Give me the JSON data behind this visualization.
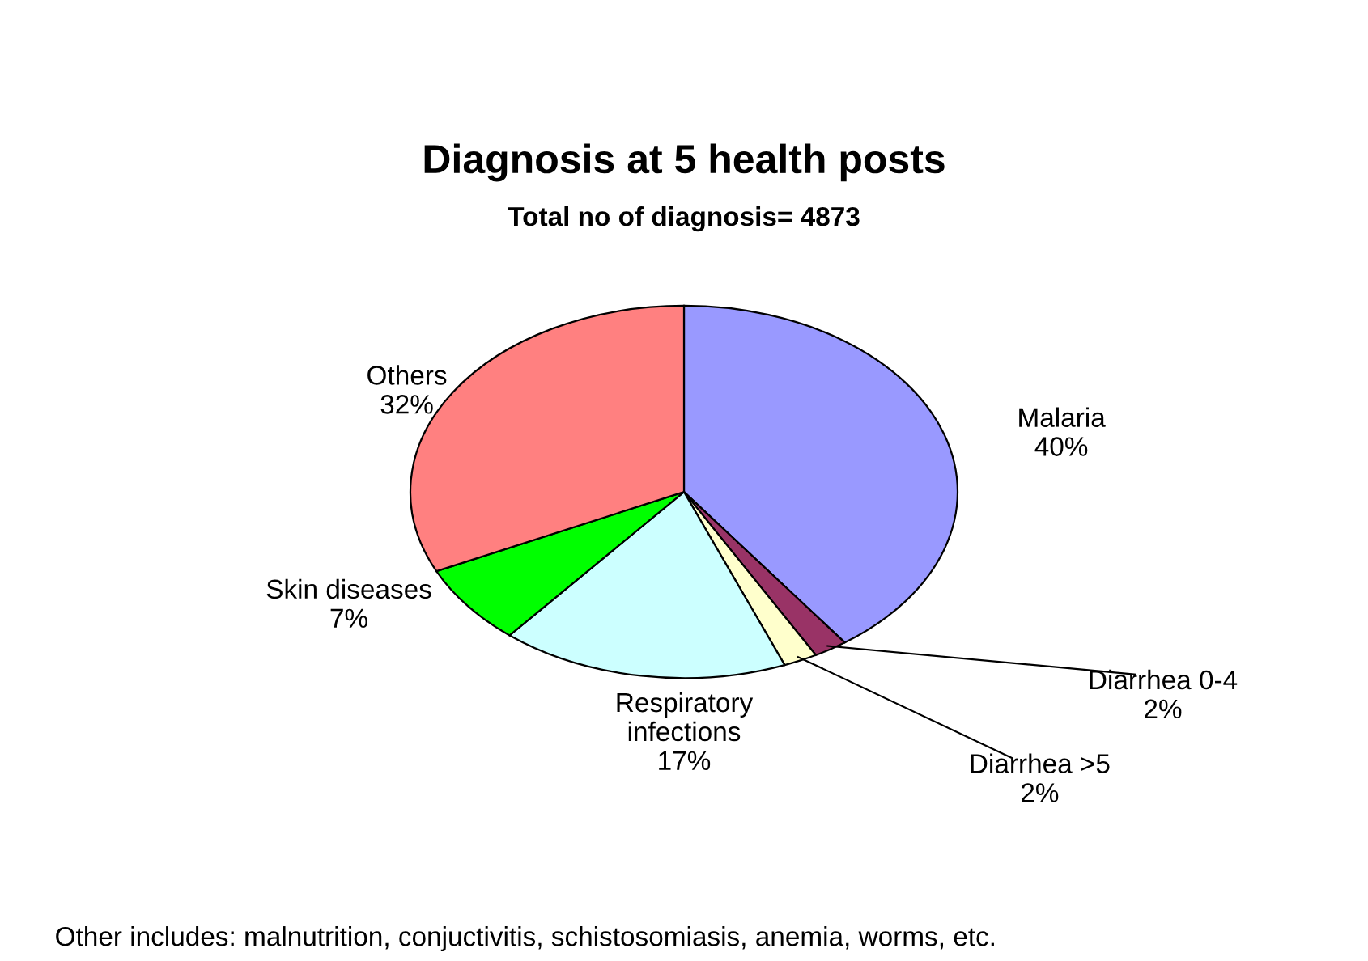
{
  "chart_data": {
    "type": "pie",
    "title": "Diagnosis at 5 health posts",
    "subtitle": "Total no of diagnosis= 4873",
    "categories": [
      "Malaria",
      "Diarrhea 0-4",
      "Diarrhea >5",
      "Respiratory infections",
      "Skin diseases",
      "Others"
    ],
    "values": [
      40,
      2,
      2,
      17,
      7,
      32
    ],
    "value_labels": [
      "40%",
      "2%",
      "2%",
      "17%",
      "7%",
      "32%"
    ],
    "colors": [
      "#9999ff",
      "#993366",
      "#ffffcc",
      "#ccffff",
      "#00ff00",
      "#ff8080"
    ],
    "annotations": [
      "Other includes: malnutrition, conjuctivitis, schistosomiasis, anemia, worms, etc."
    ]
  }
}
